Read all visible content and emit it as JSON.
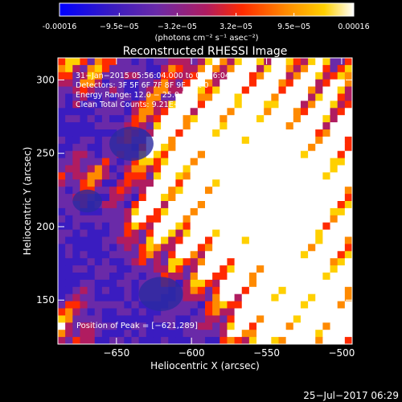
{
  "colorbar": {
    "ticks": [
      "-0.00016",
      "−9.5e−05",
      "−3.2e−05",
      "3.2e−05",
      "9.5e−05",
      "0.00016"
    ],
    "tick_values": [
      -0.00016,
      -9.5e-05,
      -3.2e-05,
      3.2e-05,
      9.5e-05,
      0.00016
    ],
    "range": [
      -0.00016,
      0.00016
    ],
    "unit_label": "(photons cm⁻² s⁻¹ asec⁻²)",
    "colors": [
      "#0000ff",
      "#3a1cc0",
      "#6a2aa8",
      "#b01c60",
      "#ff2a00",
      "#ff8a00",
      "#ffd000",
      "#ffffff"
    ]
  },
  "chart_data": {
    "type": "heatmap",
    "title": "Reconstructed RHESSI Image",
    "xlabel": "Heliocentric X (arcsec)",
    "ylabel": "Heliocentric Y (arcsec)",
    "xlim": [
      -689,
      -493
    ],
    "ylim": [
      120,
      315
    ],
    "x_ticks": [
      -650,
      -600,
      -550,
      -500
    ],
    "y_ticks": [
      150,
      200,
      250,
      300
    ],
    "x_tick_labels": [
      "−650",
      "−600",
      "−550",
      "−500"
    ],
    "y_tick_labels": [
      "150",
      "200",
      "250",
      "300"
    ],
    "annotations": [
      "31−Jan−2015 05:56:04.000 to 06:06:04.000",
      "Detectors: 3F 5F 6F 7F 8F 9F, Att 0",
      "Energy Range: 12.0 − 25.0 keV",
      "Clean    Total Counts: 9.21E+03"
    ],
    "peak_label": "Position of Peak = [−621,289]",
    "peak": [
      -621,
      289
    ],
    "grid": false
  },
  "footer": {
    "date": "25−Jul−2017 06:29"
  }
}
